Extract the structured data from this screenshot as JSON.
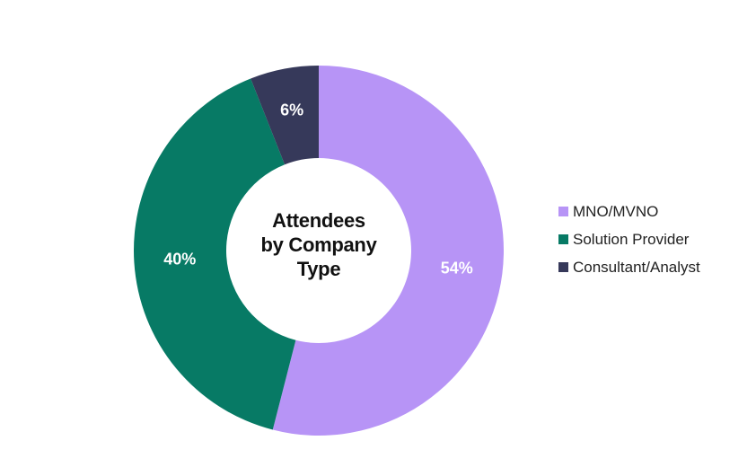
{
  "chart_data": {
    "type": "pie",
    "variant": "donut",
    "title": "Attendees by Company Type",
    "title_lines": [
      "Attendees",
      "by Company",
      "Type"
    ],
    "categories": [
      "MNO/MVNO",
      "Solution Provider",
      "Consultant/Analyst"
    ],
    "values": [
      54,
      40,
      6
    ],
    "value_labels": [
      "54%",
      "40%",
      "6%"
    ],
    "colors": [
      "#b794f6",
      "#077a65",
      "#36395a"
    ],
    "legend_position": "right",
    "start_angle_deg": 0,
    "direction": "clockwise"
  }
}
